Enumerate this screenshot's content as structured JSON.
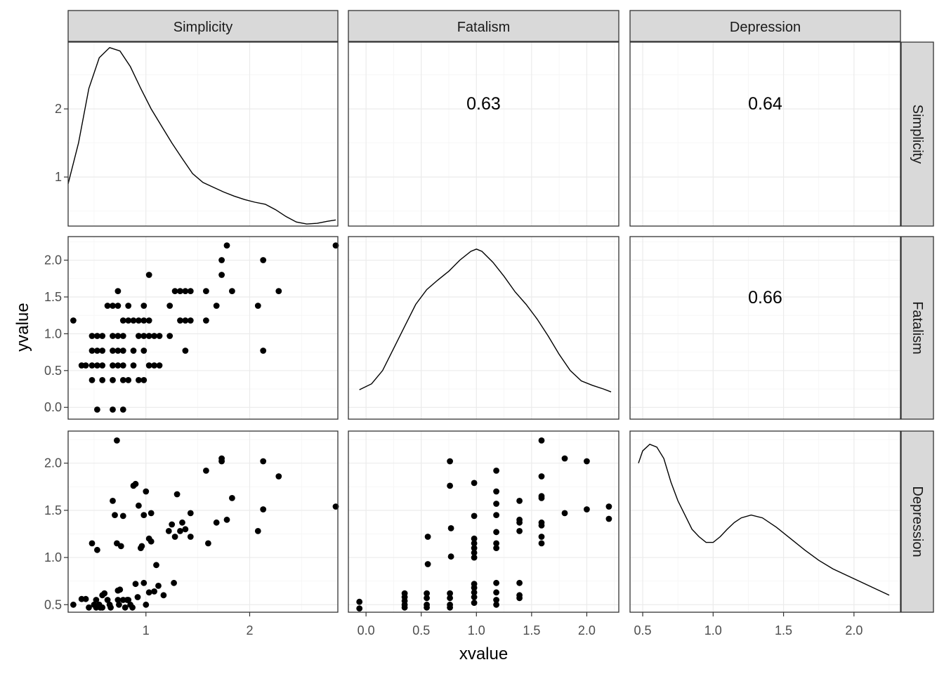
{
  "chart_data": {
    "type": "scatter-matrix",
    "variables": [
      "Simplicity",
      "Fatalism",
      "Depression"
    ],
    "xlabel": "xvalue",
    "ylabel": "yvalue",
    "grid": true,
    "theme_colors": {
      "strip_bg": "#d9d9d9",
      "border": "#333333",
      "grid_major": "#ebebeb",
      "grid_minor": "#f5f5f5",
      "mark": "#000000"
    },
    "x_scales": [
      {
        "range": [
          0.25,
          2.85
        ],
        "ticks": [
          1,
          2
        ],
        "tick_labels": [
          "1",
          "2"
        ]
      },
      {
        "range": [
          -0.16,
          2.29
        ],
        "ticks": [
          0,
          0.5,
          1,
          1.5,
          2
        ],
        "tick_labels": [
          "0.0",
          "0.5",
          "1.0",
          "1.5",
          "2.0"
        ]
      },
      {
        "range": [
          0.41,
          2.33
        ],
        "ticks": [
          0.5,
          1,
          1.5,
          2
        ],
        "tick_labels": [
          "0.5",
          "1.0",
          "1.5",
          "2.0"
        ]
      }
    ],
    "row_scales": [
      {
        "range": [
          0.28,
          2.98
        ],
        "ticks": [
          1,
          2
        ],
        "tick_labels": [
          "1",
          "2"
        ]
      },
      {
        "range": [
          -0.16,
          2.32
        ],
        "ticks": [
          0,
          0.5,
          1,
          1.5,
          2
        ],
        "tick_labels": [
          "0.0",
          "0.5",
          "1.0",
          "1.5",
          "2.0"
        ]
      },
      {
        "range": [
          0.42,
          2.34
        ],
        "ticks": [
          0.5,
          1,
          1.5,
          2
        ],
        "tick_labels": [
          "0.5",
          "1.0",
          "1.5",
          "2.0"
        ]
      }
    ],
    "correlations": [
      {
        "row": 0,
        "col": 1,
        "label": "0.63"
      },
      {
        "row": 0,
        "col": 2,
        "label": "0.64"
      },
      {
        "row": 1,
        "col": 2,
        "label": "0.66"
      }
    ],
    "densities": {
      "Simplicity": [
        [
          0.25,
          0.9
        ],
        [
          0.35,
          1.5
        ],
        [
          0.45,
          2.3
        ],
        [
          0.55,
          2.75
        ],
        [
          0.65,
          2.9
        ],
        [
          0.75,
          2.85
        ],
        [
          0.85,
          2.62
        ],
        [
          0.95,
          2.3
        ],
        [
          1.05,
          2.0
        ],
        [
          1.15,
          1.75
        ],
        [
          1.25,
          1.5
        ],
        [
          1.35,
          1.27
        ],
        [
          1.45,
          1.05
        ],
        [
          1.55,
          0.92
        ],
        [
          1.65,
          0.85
        ],
        [
          1.75,
          0.78
        ],
        [
          1.85,
          0.72
        ],
        [
          1.95,
          0.67
        ],
        [
          2.05,
          0.63
        ],
        [
          2.15,
          0.6
        ],
        [
          2.25,
          0.52
        ],
        [
          2.35,
          0.42
        ],
        [
          2.45,
          0.34
        ],
        [
          2.55,
          0.31
        ],
        [
          2.65,
          0.32
        ],
        [
          2.75,
          0.35
        ],
        [
          2.83,
          0.37
        ]
      ],
      "Fatalism": [
        [
          -0.06,
          0.24
        ],
        [
          0.05,
          0.32
        ],
        [
          0.15,
          0.5
        ],
        [
          0.25,
          0.8
        ],
        [
          0.35,
          1.1
        ],
        [
          0.45,
          1.4
        ],
        [
          0.55,
          1.6
        ],
        [
          0.65,
          1.73
        ],
        [
          0.75,
          1.85
        ],
        [
          0.85,
          2.0
        ],
        [
          0.95,
          2.12
        ],
        [
          1.0,
          2.15
        ],
        [
          1.05,
          2.12
        ],
        [
          1.15,
          1.97
        ],
        [
          1.25,
          1.78
        ],
        [
          1.35,
          1.57
        ],
        [
          1.45,
          1.4
        ],
        [
          1.55,
          1.2
        ],
        [
          1.65,
          0.97
        ],
        [
          1.75,
          0.72
        ],
        [
          1.85,
          0.5
        ],
        [
          1.95,
          0.36
        ],
        [
          2.05,
          0.3
        ],
        [
          2.15,
          0.25
        ],
        [
          2.22,
          0.21
        ]
      ],
      "Depression": [
        [
          0.47,
          2.0
        ],
        [
          0.5,
          2.13
        ],
        [
          0.55,
          2.2
        ],
        [
          0.6,
          2.17
        ],
        [
          0.65,
          2.05
        ],
        [
          0.7,
          1.8
        ],
        [
          0.75,
          1.6
        ],
        [
          0.8,
          1.45
        ],
        [
          0.85,
          1.3
        ],
        [
          0.9,
          1.22
        ],
        [
          0.95,
          1.16
        ],
        [
          1.0,
          1.16
        ],
        [
          1.05,
          1.22
        ],
        [
          1.1,
          1.3
        ],
        [
          1.15,
          1.37
        ],
        [
          1.2,
          1.42
        ],
        [
          1.27,
          1.45
        ],
        [
          1.35,
          1.42
        ],
        [
          1.45,
          1.32
        ],
        [
          1.55,
          1.2
        ],
        [
          1.65,
          1.08
        ],
        [
          1.75,
          0.97
        ],
        [
          1.85,
          0.88
        ],
        [
          1.95,
          0.81
        ],
        [
          2.05,
          0.74
        ],
        [
          2.15,
          0.67
        ],
        [
          2.25,
          0.6
        ]
      ]
    },
    "scatter": [
      {
        "row": 1,
        "col": 0,
        "points": [
          [
            0.3,
            1.18
          ],
          [
            0.38,
            0.57
          ],
          [
            0.42,
            0.57
          ],
          [
            0.48,
            0.97
          ],
          [
            0.48,
            0.77
          ],
          [
            0.48,
            0.57
          ],
          [
            0.48,
            0.37
          ],
          [
            0.53,
            0.97
          ],
          [
            0.53,
            0.77
          ],
          [
            0.53,
            0.57
          ],
          [
            0.53,
            -0.03
          ],
          [
            0.58,
            0.97
          ],
          [
            0.58,
            0.77
          ],
          [
            0.58,
            0.57
          ],
          [
            0.58,
            0.37
          ],
          [
            0.63,
            1.38
          ],
          [
            0.68,
            1.38
          ],
          [
            0.68,
            0.97
          ],
          [
            0.68,
            0.77
          ],
          [
            0.68,
            0.57
          ],
          [
            0.68,
            0.37
          ],
          [
            0.68,
            -0.03
          ],
          [
            0.73,
            1.58
          ],
          [
            0.73,
            1.38
          ],
          [
            0.73,
            0.97
          ],
          [
            0.73,
            0.77
          ],
          [
            0.73,
            0.57
          ],
          [
            0.78,
            1.18
          ],
          [
            0.78,
            0.97
          ],
          [
            0.78,
            0.77
          ],
          [
            0.78,
            0.57
          ],
          [
            0.78,
            0.37
          ],
          [
            0.78,
            -0.03
          ],
          [
            0.83,
            1.38
          ],
          [
            0.83,
            1.18
          ],
          [
            0.83,
            0.37
          ],
          [
            0.88,
            1.18
          ],
          [
            0.88,
            0.77
          ],
          [
            0.88,
            0.57
          ],
          [
            0.93,
            1.18
          ],
          [
            0.93,
            0.97
          ],
          [
            0.93,
            0.37
          ],
          [
            0.98,
            1.38
          ],
          [
            0.98,
            1.18
          ],
          [
            0.98,
            0.97
          ],
          [
            0.98,
            0.77
          ],
          [
            0.98,
            0.37
          ],
          [
            1.03,
            1.18
          ],
          [
            1.03,
            0.97
          ],
          [
            1.03,
            0.57
          ],
          [
            1.03,
            1.8
          ],
          [
            1.08,
            0.97
          ],
          [
            1.08,
            0.57
          ],
          [
            1.13,
            0.97
          ],
          [
            1.13,
            0.57
          ],
          [
            1.23,
            1.38
          ],
          [
            1.23,
            0.97
          ],
          [
            1.28,
            1.58
          ],
          [
            1.33,
            1.58
          ],
          [
            1.33,
            1.18
          ],
          [
            1.38,
            1.58
          ],
          [
            1.38,
            1.18
          ],
          [
            1.38,
            0.77
          ],
          [
            1.43,
            1.58
          ],
          [
            1.43,
            1.18
          ],
          [
            1.58,
            1.58
          ],
          [
            1.58,
            1.18
          ],
          [
            1.68,
            1.38
          ],
          [
            1.73,
            2.0
          ],
          [
            1.73,
            1.8
          ],
          [
            1.78,
            2.2
          ],
          [
            1.83,
            1.58
          ],
          [
            2.08,
            1.38
          ],
          [
            2.13,
            2.0
          ],
          [
            2.13,
            0.77
          ],
          [
            2.28,
            1.58
          ],
          [
            2.83,
            2.2
          ]
        ]
      },
      {
        "row": 2,
        "col": 0,
        "points": [
          [
            0.3,
            0.5
          ],
          [
            0.38,
            0.56
          ],
          [
            0.42,
            0.56
          ],
          [
            0.45,
            0.47
          ],
          [
            0.48,
            1.15
          ],
          [
            0.5,
            0.5
          ],
          [
            0.52,
            0.47
          ],
          [
            0.52,
            0.55
          ],
          [
            0.53,
            1.08
          ],
          [
            0.55,
            0.5
          ],
          [
            0.56,
            0.47
          ],
          [
            0.58,
            0.6
          ],
          [
            0.58,
            0.47
          ],
          [
            0.6,
            0.62
          ],
          [
            0.63,
            0.55
          ],
          [
            0.65,
            0.5
          ],
          [
            0.66,
            0.47
          ],
          [
            0.68,
            1.6
          ],
          [
            0.7,
            1.45
          ],
          [
            0.72,
            2.24
          ],
          [
            0.72,
            1.15
          ],
          [
            0.73,
            0.65
          ],
          [
            0.73,
            0.55
          ],
          [
            0.74,
            0.5
          ],
          [
            0.75,
            0.66
          ],
          [
            0.76,
            1.12
          ],
          [
            0.78,
            0.55
          ],
          [
            0.78,
            1.44
          ],
          [
            0.8,
            0.47
          ],
          [
            0.82,
            0.55
          ],
          [
            0.83,
            0.55
          ],
          [
            0.85,
            0.5
          ],
          [
            0.87,
            0.47
          ],
          [
            0.88,
            1.76
          ],
          [
            0.9,
            1.78
          ],
          [
            0.9,
            0.72
          ],
          [
            0.92,
            0.58
          ],
          [
            0.93,
            1.55
          ],
          [
            0.95,
            1.1
          ],
          [
            0.96,
            1.12
          ],
          [
            0.98,
            0.73
          ],
          [
            0.98,
            1.45
          ],
          [
            1.0,
            1.7
          ],
          [
            1.0,
            0.5
          ],
          [
            1.03,
            1.2
          ],
          [
            1.03,
            0.63
          ],
          [
            1.05,
            1.17
          ],
          [
            1.05,
            1.47
          ],
          [
            1.08,
            0.64
          ],
          [
            1.1,
            0.92
          ],
          [
            1.12,
            0.7
          ],
          [
            1.17,
            0.6
          ],
          [
            1.22,
            1.28
          ],
          [
            1.25,
            1.35
          ],
          [
            1.27,
            0.73
          ],
          [
            1.28,
            1.22
          ],
          [
            1.3,
            1.67
          ],
          [
            1.33,
            1.28
          ],
          [
            1.35,
            1.37
          ],
          [
            1.38,
            1.3
          ],
          [
            1.43,
            1.47
          ],
          [
            1.43,
            1.22
          ],
          [
            1.58,
            1.92
          ],
          [
            1.6,
            1.15
          ],
          [
            1.68,
            1.37
          ],
          [
            1.73,
            2.05
          ],
          [
            1.73,
            2.02
          ],
          [
            1.78,
            1.4
          ],
          [
            1.83,
            1.63
          ],
          [
            2.08,
            1.28
          ],
          [
            2.13,
            2.02
          ],
          [
            2.13,
            1.51
          ],
          [
            2.28,
            1.86
          ],
          [
            2.83,
            1.54
          ]
        ]
      },
      {
        "row": 2,
        "col": 1,
        "points": [
          [
            -0.06,
            0.53
          ],
          [
            -0.06,
            0.46
          ],
          [
            0.35,
            0.62
          ],
          [
            0.35,
            0.58
          ],
          [
            0.35,
            0.54
          ],
          [
            0.35,
            0.5
          ],
          [
            0.35,
            0.47
          ],
          [
            0.55,
            0.62
          ],
          [
            0.55,
            0.57
          ],
          [
            0.55,
            0.5
          ],
          [
            0.55,
            0.47
          ],
          [
            0.56,
            0.93
          ],
          [
            0.56,
            1.22
          ],
          [
            0.76,
            0.62
          ],
          [
            0.76,
            0.57
          ],
          [
            0.76,
            0.5
          ],
          [
            0.76,
            0.47
          ],
          [
            0.76,
            1.76
          ],
          [
            0.76,
            2.02
          ],
          [
            0.77,
            1.31
          ],
          [
            0.77,
            1.01
          ],
          [
            0.98,
            1.79
          ],
          [
            0.98,
            1.44
          ],
          [
            0.98,
            1.2
          ],
          [
            0.98,
            1.15
          ],
          [
            0.98,
            1.1
          ],
          [
            0.98,
            1.05
          ],
          [
            0.98,
            1.0
          ],
          [
            0.98,
            0.72
          ],
          [
            0.98,
            0.68
          ],
          [
            0.98,
            0.63
          ],
          [
            0.98,
            0.58
          ],
          [
            0.98,
            0.52
          ],
          [
            1.18,
            1.92
          ],
          [
            1.18,
            1.7
          ],
          [
            1.18,
            1.57
          ],
          [
            1.18,
            1.45
          ],
          [
            1.18,
            1.27
          ],
          [
            1.18,
            1.15
          ],
          [
            1.18,
            1.1
          ],
          [
            1.18,
            0.73
          ],
          [
            1.18,
            0.63
          ],
          [
            1.18,
            0.55
          ],
          [
            1.18,
            0.5
          ],
          [
            1.39,
            1.6
          ],
          [
            1.39,
            1.4
          ],
          [
            1.39,
            1.37
          ],
          [
            1.39,
            1.28
          ],
          [
            1.39,
            0.73
          ],
          [
            1.39,
            0.6
          ],
          [
            1.39,
            0.57
          ],
          [
            1.59,
            2.24
          ],
          [
            1.59,
            1.86
          ],
          [
            1.59,
            1.65
          ],
          [
            1.59,
            1.63
          ],
          [
            1.59,
            1.37
          ],
          [
            1.59,
            1.34
          ],
          [
            1.59,
            1.22
          ],
          [
            1.59,
            1.15
          ],
          [
            1.8,
            2.05
          ],
          [
            1.8,
            1.47
          ],
          [
            2.0,
            2.02
          ],
          [
            2.0,
            1.51
          ],
          [
            2.2,
            1.54
          ],
          [
            2.2,
            1.41
          ]
        ]
      }
    ]
  }
}
